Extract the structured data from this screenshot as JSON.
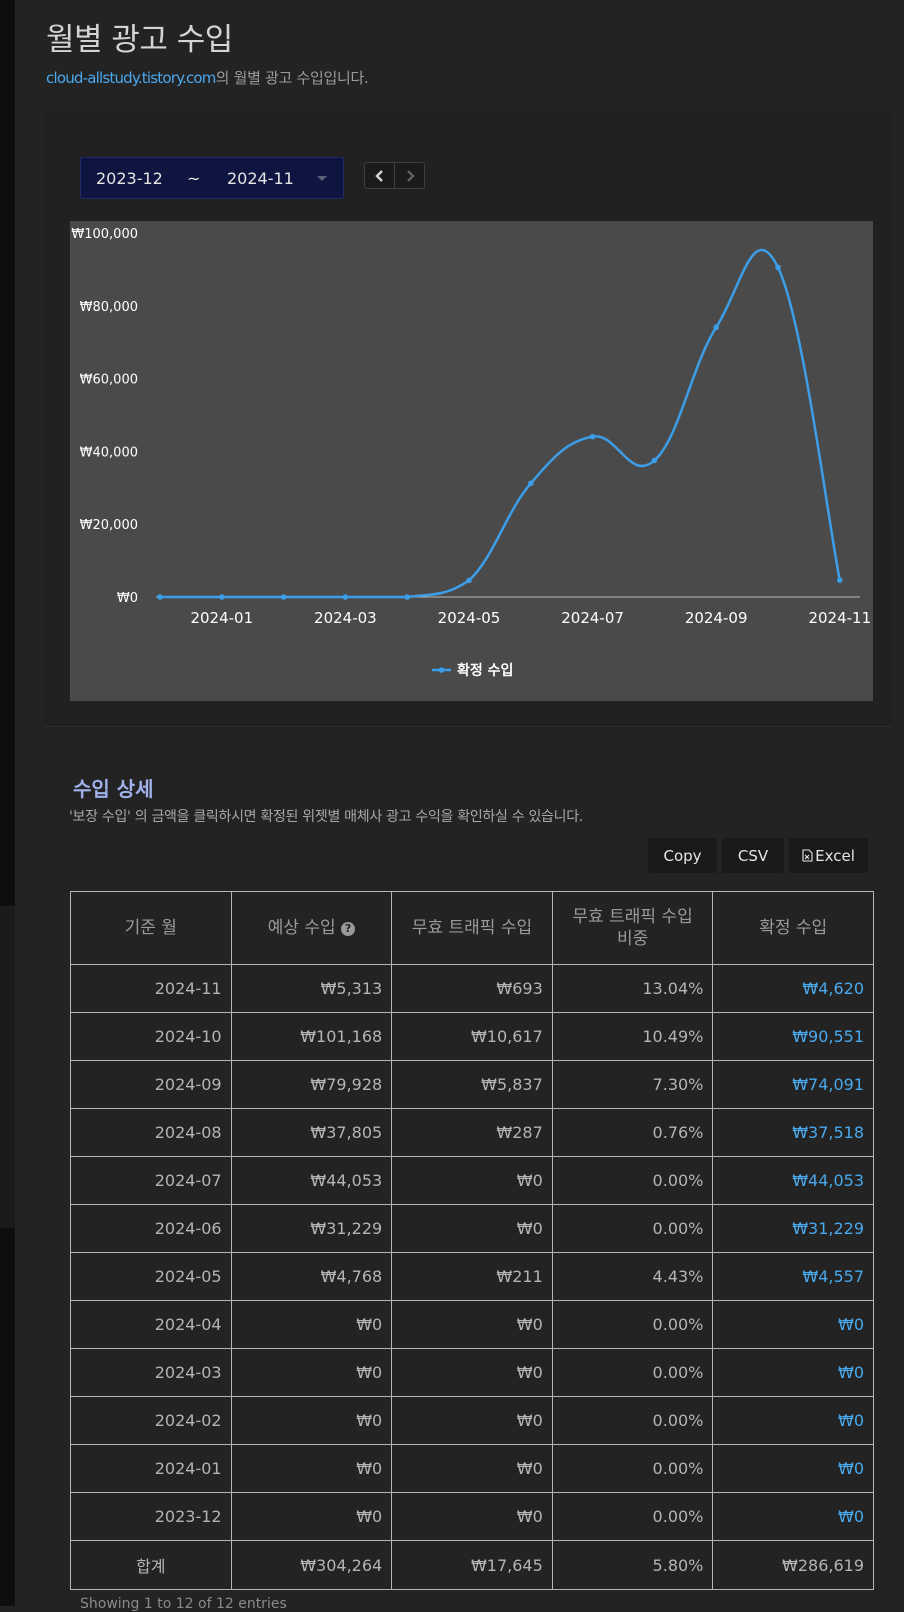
{
  "header": {
    "title": "월별 광고 수입",
    "site_link": "cloud-allstudy.tistory.com",
    "subtitle_suffix": "의 월별 광고 수입입니다."
  },
  "controls": {
    "from_month": "2023-12",
    "separator": "~",
    "to_month": "2024-11",
    "prev_icon": "chevron-left-icon",
    "next_icon": "chevron-right-icon"
  },
  "chart_data": {
    "type": "line",
    "x": [
      "2023-12",
      "2024-01",
      "2024-02",
      "2024-03",
      "2024-04",
      "2024-05",
      "2024-06",
      "2024-07",
      "2024-08",
      "2024-09",
      "2024-10",
      "2024-11"
    ],
    "series": [
      {
        "name": "확정 수입",
        "color": "#3c9ee8",
        "values": [
          0,
          0,
          0,
          0,
          0,
          4557,
          31229,
          44053,
          37518,
          74091,
          90551,
          4620
        ]
      }
    ],
    "x_tick_labels": [
      "2024-01",
      "2024-03",
      "2024-05",
      "2024-07",
      "2024-09",
      "2024-11"
    ],
    "y_tick_labels": [
      "₩0",
      "₩20,000",
      "₩40,000",
      "₩60,000",
      "₩80,000",
      "₩100,000"
    ],
    "ylim": [
      0,
      100000
    ],
    "grid": false,
    "legend_position": "bottom",
    "smooth": true
  },
  "detail": {
    "title": "수입 상세",
    "description": "'보장 수입' 의 금액을 클릭하시면 확정된 위젯별 매체사 광고 수익을 확인하실 수 있습니다.",
    "buttons": {
      "copy": "Copy",
      "csv": "CSV",
      "excel": "Excel"
    },
    "excel_icon": "excel-file-icon",
    "help_icon": "question-circle-icon",
    "columns": {
      "month": "기준 월",
      "expected": "예상 수입",
      "invalid": "무효 트래픽 수입",
      "ratio": "무효 트래픽 수입 비중",
      "confirmed": "확정 수입"
    },
    "rows": [
      {
        "month": "2024-11",
        "expected": "₩5,313",
        "invalid": "₩693",
        "ratio": "13.04%",
        "confirmed": "₩4,620"
      },
      {
        "month": "2024-10",
        "expected": "₩101,168",
        "invalid": "₩10,617",
        "ratio": "10.49%",
        "confirmed": "₩90,551"
      },
      {
        "month": "2024-09",
        "expected": "₩79,928",
        "invalid": "₩5,837",
        "ratio": "7.30%",
        "confirmed": "₩74,091"
      },
      {
        "month": "2024-08",
        "expected": "₩37,805",
        "invalid": "₩287",
        "ratio": "0.76%",
        "confirmed": "₩37,518"
      },
      {
        "month": "2024-07",
        "expected": "₩44,053",
        "invalid": "₩0",
        "ratio": "0.00%",
        "confirmed": "₩44,053"
      },
      {
        "month": "2024-06",
        "expected": "₩31,229",
        "invalid": "₩0",
        "ratio": "0.00%",
        "confirmed": "₩31,229"
      },
      {
        "month": "2024-05",
        "expected": "₩4,768",
        "invalid": "₩211",
        "ratio": "4.43%",
        "confirmed": "₩4,557"
      },
      {
        "month": "2024-04",
        "expected": "₩0",
        "invalid": "₩0",
        "ratio": "0.00%",
        "confirmed": "₩0"
      },
      {
        "month": "2024-03",
        "expected": "₩0",
        "invalid": "₩0",
        "ratio": "0.00%",
        "confirmed": "₩0"
      },
      {
        "month": "2024-02",
        "expected": "₩0",
        "invalid": "₩0",
        "ratio": "0.00%",
        "confirmed": "₩0"
      },
      {
        "month": "2024-01",
        "expected": "₩0",
        "invalid": "₩0",
        "ratio": "0.00%",
        "confirmed": "₩0"
      },
      {
        "month": "2023-12",
        "expected": "₩0",
        "invalid": "₩0",
        "ratio": "0.00%",
        "confirmed": "₩0"
      }
    ],
    "total": {
      "label": "합계",
      "expected": "₩304,264",
      "invalid": "₩17,645",
      "ratio": "5.80%",
      "confirmed": "₩286,619"
    },
    "footer_text": "Showing 1 to 12 of 12 entries"
  }
}
